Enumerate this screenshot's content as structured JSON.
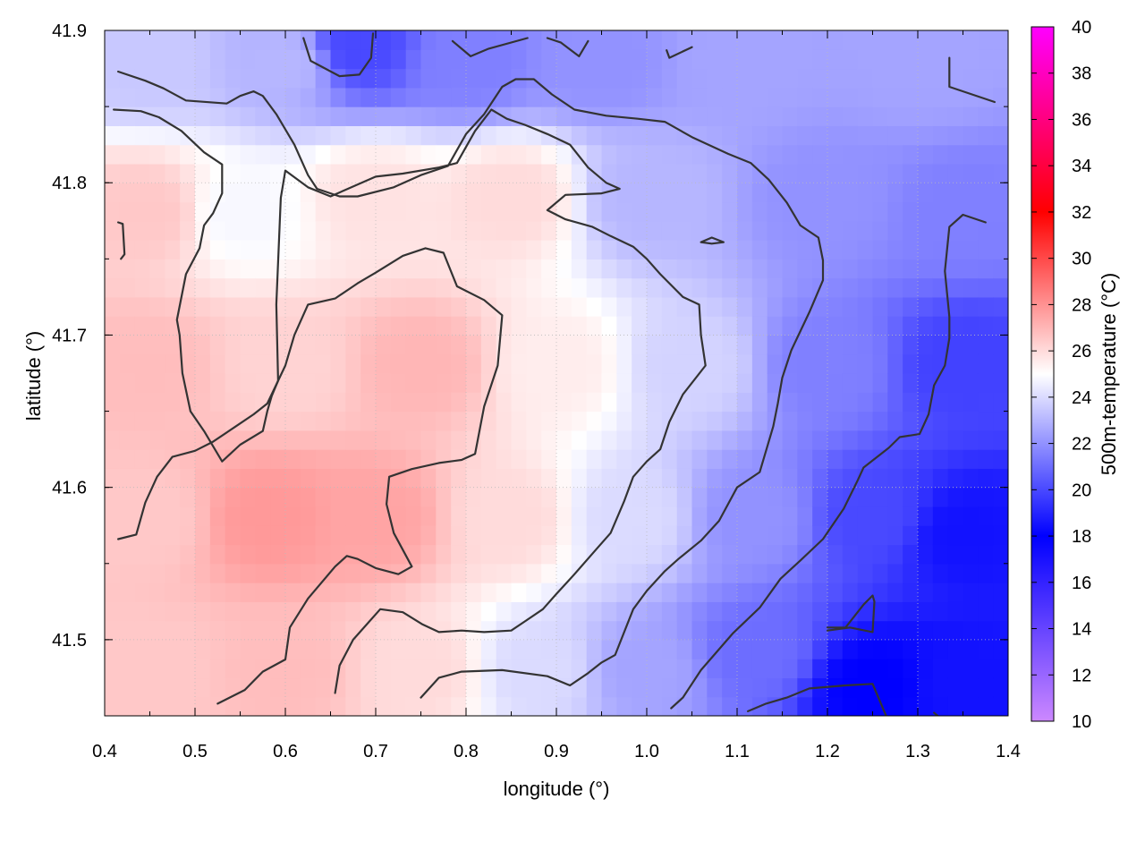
{
  "chart_data": {
    "type": "heatmap",
    "title": "",
    "xlabel": "longitude (°)",
    "ylabel": "latitude (°)",
    "colorbar_label": "500m-temperature (°C)",
    "xlim": [
      0.4,
      1.4
    ],
    "ylim": [
      41.45,
      41.9
    ],
    "x_ticks": [
      0.4,
      0.5,
      0.6,
      0.7,
      0.8,
      0.9,
      1.0,
      1.1,
      1.2,
      1.3,
      1.4
    ],
    "x_tick_labels": [
      "0.4",
      "0.5",
      "0.6",
      "0.7",
      "0.8",
      "0.9",
      "1.0",
      "1.1",
      "1.2",
      "1.3",
      "1.4"
    ],
    "y_ticks": [
      41.5,
      41.6,
      41.7,
      41.8,
      41.9
    ],
    "y_tick_labels": [
      "41.5",
      "41.6",
      "41.7",
      "41.8",
      "41.9"
    ],
    "colorbar_range": [
      10,
      40
    ],
    "colorbar_ticks": [
      10,
      12,
      14,
      16,
      18,
      20,
      22,
      24,
      26,
      28,
      30,
      32,
      34,
      36,
      38,
      40
    ],
    "colorbar_tick_labels": [
      "10",
      "12",
      "14",
      "16",
      "18",
      "20",
      "22",
      "24",
      "26",
      "28",
      "30",
      "32",
      "34",
      "36",
      "38",
      "40"
    ],
    "colormap": [
      {
        "value": 10,
        "color": "#cc88ff"
      },
      {
        "value": 18,
        "color": "#0000ff"
      },
      {
        "value": 25,
        "color": "#ffffff"
      },
      {
        "value": 32,
        "color": "#ff0000"
      },
      {
        "value": 40,
        "color": "#ff00ff"
      }
    ],
    "grid": true,
    "contour_color": "#333333",
    "temperature_samples": [
      {
        "lon": 0.45,
        "lat": 41.88,
        "t": 23.5
      },
      {
        "lon": 0.6,
        "lat": 41.88,
        "t": 23.0
      },
      {
        "lon": 0.68,
        "lat": 41.89,
        "t": 20.0
      },
      {
        "lon": 0.8,
        "lat": 41.88,
        "t": 21.5
      },
      {
        "lon": 0.95,
        "lat": 41.88,
        "t": 22.0
      },
      {
        "lon": 1.1,
        "lat": 41.88,
        "t": 22.5
      },
      {
        "lon": 1.3,
        "lat": 41.88,
        "t": 22.5
      },
      {
        "lon": 0.45,
        "lat": 41.78,
        "t": 26.5
      },
      {
        "lon": 0.55,
        "lat": 41.78,
        "t": 24.8
      },
      {
        "lon": 0.7,
        "lat": 41.79,
        "t": 25.8
      },
      {
        "lon": 0.85,
        "lat": 41.79,
        "t": 26.0
      },
      {
        "lon": 1.0,
        "lat": 41.79,
        "t": 23.0
      },
      {
        "lon": 1.2,
        "lat": 41.79,
        "t": 22.0
      },
      {
        "lon": 1.35,
        "lat": 41.78,
        "t": 21.5
      },
      {
        "lon": 0.45,
        "lat": 41.68,
        "t": 26.8
      },
      {
        "lon": 0.6,
        "lat": 41.68,
        "t": 26.2
      },
      {
        "lon": 0.75,
        "lat": 41.68,
        "t": 27.0
      },
      {
        "lon": 0.9,
        "lat": 41.68,
        "t": 25.5
      },
      {
        "lon": 1.05,
        "lat": 41.68,
        "t": 23.8
      },
      {
        "lon": 1.2,
        "lat": 41.68,
        "t": 21.5
      },
      {
        "lon": 1.35,
        "lat": 41.68,
        "t": 19.8
      },
      {
        "lon": 0.45,
        "lat": 41.58,
        "t": 26.5
      },
      {
        "lon": 0.58,
        "lat": 41.58,
        "t": 27.8
      },
      {
        "lon": 0.7,
        "lat": 41.58,
        "t": 27.5
      },
      {
        "lon": 0.85,
        "lat": 41.58,
        "t": 26.0
      },
      {
        "lon": 0.98,
        "lat": 41.58,
        "t": 24.0
      },
      {
        "lon": 1.12,
        "lat": 41.58,
        "t": 22.0
      },
      {
        "lon": 1.25,
        "lat": 41.58,
        "t": 20.0
      },
      {
        "lon": 1.35,
        "lat": 41.57,
        "t": 18.5
      },
      {
        "lon": 0.45,
        "lat": 41.48,
        "t": 26.5
      },
      {
        "lon": 0.6,
        "lat": 41.48,
        "t": 26.8
      },
      {
        "lon": 0.75,
        "lat": 41.48,
        "t": 26.0
      },
      {
        "lon": 0.88,
        "lat": 41.48,
        "t": 24.0
      },
      {
        "lon": 1.0,
        "lat": 41.48,
        "t": 22.5
      },
      {
        "lon": 1.12,
        "lat": 41.49,
        "t": 21.0
      },
      {
        "lon": 1.25,
        "lat": 41.47,
        "t": 18.0
      },
      {
        "lon": 1.35,
        "lat": 41.47,
        "t": 18.5
      }
    ],
    "contours": [
      [
        [
          0.415,
          41.873
        ],
        [
          0.445,
          41.867
        ],
        [
          0.465,
          41.862
        ],
        [
          0.49,
          41.854
        ],
        [
          0.535,
          41.852
        ],
        [
          0.55,
          41.857
        ],
        [
          0.565,
          41.86
        ],
        [
          0.575,
          41.857
        ],
        [
          0.59,
          41.845
        ],
        [
          0.61,
          41.825
        ],
        [
          0.625,
          41.805
        ],
        [
          0.635,
          41.796
        ],
        [
          0.66,
          41.791
        ],
        [
          0.68,
          41.791
        ],
        [
          0.72,
          41.797
        ],
        [
          0.75,
          41.805
        ],
        [
          0.78,
          41.811
        ],
        [
          0.8,
          41.832
        ],
        [
          0.82,
          41.845
        ],
        [
          0.84,
          41.863
        ],
        [
          0.855,
          41.868
        ],
        [
          0.875,
          41.868
        ],
        [
          0.895,
          41.858
        ],
        [
          0.92,
          41.848
        ],
        [
          0.955,
          41.844
        ],
        [
          0.99,
          41.842
        ],
        [
          1.02,
          41.84
        ],
        [
          1.05,
          41.83
        ],
        [
          1.09,
          41.819
        ],
        [
          1.115,
          41.813
        ],
        [
          1.135,
          41.802
        ],
        [
          1.155,
          41.787
        ],
        [
          1.17,
          41.772
        ],
        [
          1.19,
          41.764
        ],
        [
          1.195,
          41.749
        ],
        [
          1.195,
          41.736
        ],
        [
          1.18,
          41.715
        ],
        [
          1.16,
          41.69
        ],
        [
          1.15,
          41.672
        ],
        [
          1.145,
          41.655
        ],
        [
          1.14,
          41.64
        ],
        [
          1.125,
          41.61
        ],
        [
          1.1,
          41.6
        ],
        [
          1.08,
          41.578
        ],
        [
          1.06,
          41.565
        ],
        [
          1.035,
          41.553
        ],
        [
          1.02,
          41.545
        ],
        [
          1.0,
          41.532
        ],
        [
          0.985,
          41.52
        ],
        [
          0.965,
          41.49
        ],
        [
          0.95,
          41.485
        ],
        [
          0.935,
          41.478
        ],
        [
          0.915,
          41.47
        ],
        [
          0.89,
          41.476
        ],
        [
          0.84,
          41.48
        ],
        [
          0.795,
          41.479
        ],
        [
          0.77,
          41.475
        ],
        [
          0.75,
          41.462
        ]
      ],
      [
        [
          0.41,
          41.848
        ],
        [
          0.44,
          41.847
        ],
        [
          0.46,
          41.843
        ],
        [
          0.485,
          41.834
        ],
        [
          0.51,
          41.82
        ],
        [
          0.53,
          41.812
        ],
        [
          0.53,
          41.793
        ],
        [
          0.52,
          41.78
        ],
        [
          0.51,
          41.772
        ],
        [
          0.505,
          41.757
        ],
        [
          0.49,
          41.74
        ],
        [
          0.48,
          41.71
        ],
        [
          0.483,
          41.7
        ],
        [
          0.486,
          41.675
        ],
        [
          0.495,
          41.65
        ],
        [
          0.51,
          41.637
        ],
        [
          0.53,
          41.617
        ],
        [
          0.55,
          41.628
        ],
        [
          0.575,
          41.637
        ],
        [
          0.58,
          41.65
        ],
        [
          0.585,
          41.66
        ],
        [
          0.592,
          41.67
        ],
        [
          0.59,
          41.72
        ],
        [
          0.595,
          41.79
        ],
        [
          0.6,
          41.808
        ],
        [
          0.625,
          41.797
        ],
        [
          0.65,
          41.791
        ],
        [
          0.7,
          41.804
        ],
        [
          0.73,
          41.806
        ],
        [
          0.77,
          41.81
        ],
        [
          0.79,
          41.813
        ],
        [
          0.81,
          41.834
        ],
        [
          0.828,
          41.848
        ],
        [
          0.845,
          41.842
        ],
        [
          0.865,
          41.838
        ],
        [
          0.89,
          41.832
        ],
        [
          0.915,
          41.825
        ],
        [
          0.935,
          41.81
        ],
        [
          0.955,
          41.8
        ],
        [
          0.97,
          41.796
        ],
        [
          0.95,
          41.793
        ],
        [
          0.91,
          41.792
        ],
        [
          0.89,
          41.782
        ],
        [
          0.91,
          41.776
        ],
        [
          0.94,
          41.771
        ],
        [
          0.96,
          41.765
        ],
        [
          0.985,
          41.758
        ],
        [
          1.0,
          41.75
        ],
        [
          1.015,
          41.74
        ],
        [
          1.04,
          41.725
        ],
        [
          1.058,
          41.72
        ],
        [
          1.06,
          41.7
        ],
        [
          1.065,
          41.68
        ],
        [
          1.04,
          41.661
        ],
        [
          1.025,
          41.643
        ],
        [
          1.015,
          41.625
        ],
        [
          1.0,
          41.617
        ],
        [
          0.985,
          41.607
        ],
        [
          0.975,
          41.591
        ],
        [
          0.96,
          41.57
        ],
        [
          0.945,
          41.56
        ],
        [
          0.92,
          41.543
        ],
        [
          0.9,
          41.53
        ],
        [
          0.885,
          41.52
        ],
        [
          0.865,
          41.512
        ],
        [
          0.85,
          41.506
        ],
        [
          0.82,
          41.505
        ],
        [
          0.795,
          41.506
        ],
        [
          0.77,
          41.505
        ],
        [
          0.752,
          41.51
        ],
        [
          0.73,
          41.518
        ],
        [
          0.705,
          41.52
        ],
        [
          0.69,
          41.51
        ],
        [
          0.675,
          41.5
        ],
        [
          0.66,
          41.483
        ],
        [
          0.655,
          41.465
        ]
      ],
      [
        [
          0.415,
          41.566
        ],
        [
          0.435,
          41.569
        ],
        [
          0.445,
          41.59
        ],
        [
          0.458,
          41.607
        ],
        [
          0.475,
          41.62
        ],
        [
          0.5,
          41.624
        ],
        [
          0.52,
          41.63
        ],
        [
          0.545,
          41.64
        ],
        [
          0.565,
          41.648
        ],
        [
          0.58,
          41.655
        ],
        [
          0.6,
          41.68
        ],
        [
          0.61,
          41.7
        ],
        [
          0.625,
          41.72
        ],
        [
          0.655,
          41.724
        ],
        [
          0.68,
          41.734
        ],
        [
          0.7,
          41.741
        ],
        [
          0.73,
          41.752
        ],
        [
          0.755,
          41.757
        ],
        [
          0.775,
          41.754
        ],
        [
          0.79,
          41.732
        ],
        [
          0.82,
          41.723
        ],
        [
          0.84,
          41.713
        ],
        [
          0.835,
          41.68
        ],
        [
          0.82,
          41.653
        ],
        [
          0.81,
          41.622
        ],
        [
          0.795,
          41.618
        ],
        [
          0.77,
          41.616
        ],
        [
          0.74,
          41.612
        ],
        [
          0.715,
          41.607
        ],
        [
          0.712,
          41.589
        ],
        [
          0.72,
          41.57
        ],
        [
          0.74,
          41.548
        ],
        [
          0.725,
          41.543
        ],
        [
          0.7,
          41.547
        ],
        [
          0.68,
          41.553
        ],
        [
          0.668,
          41.555
        ],
        [
          0.655,
          41.548
        ],
        [
          0.625,
          41.527
        ],
        [
          0.605,
          41.508
        ],
        [
          0.6,
          41.487
        ],
        [
          0.575,
          41.479
        ],
        [
          0.555,
          41.467
        ],
        [
          0.525,
          41.458
        ]
      ],
      [
        [
          0.62,
          41.895
        ],
        [
          0.628,
          41.88
        ],
        [
          0.66,
          41.87
        ],
        [
          0.682,
          41.871
        ],
        [
          0.695,
          41.882
        ],
        [
          0.697,
          41.898
        ]
      ],
      [
        [
          0.785,
          41.893
        ],
        [
          0.805,
          41.883
        ],
        [
          0.825,
          41.888
        ],
        [
          0.868,
          41.895
        ]
      ],
      [
        [
          0.89,
          41.895
        ],
        [
          0.905,
          41.892
        ],
        [
          0.925,
          41.883
        ],
        [
          0.935,
          41.893
        ]
      ],
      [
        [
          1.022,
          41.887
        ],
        [
          1.025,
          41.882
        ],
        [
          1.05,
          41.889
        ]
      ],
      [
        [
          1.335,
          41.882
        ],
        [
          1.335,
          41.863
        ],
        [
          1.385,
          41.853
        ]
      ],
      [
        [
          0.415,
          41.774
        ],
        [
          0.42,
          41.773
        ],
        [
          0.422,
          41.753
        ],
        [
          0.418,
          41.75
        ]
      ],
      [
        [
          1.06,
          41.761
        ],
        [
          1.072,
          41.764
        ],
        [
          1.085,
          41.761
        ],
        [
          1.072,
          41.76
        ],
        [
          1.06,
          41.761
        ]
      ],
      [
        [
          1.375,
          41.774
        ],
        [
          1.35,
          41.779
        ],
        [
          1.335,
          41.771
        ],
        [
          1.33,
          41.742
        ],
        [
          1.335,
          41.712
        ],
        [
          1.335,
          41.698
        ],
        [
          1.33,
          41.68
        ],
        [
          1.318,
          41.667
        ],
        [
          1.312,
          41.648
        ],
        [
          1.302,
          41.635
        ],
        [
          1.28,
          41.633
        ],
        [
          1.268,
          41.626
        ],
        [
          1.24,
          41.613
        ],
        [
          1.233,
          41.604
        ],
        [
          1.218,
          41.586
        ],
        [
          1.195,
          41.566
        ],
        [
          1.17,
          41.552
        ],
        [
          1.148,
          41.54
        ],
        [
          1.125,
          41.521
        ],
        [
          1.095,
          41.504
        ],
        [
          1.06,
          41.48
        ],
        [
          1.04,
          41.462
        ],
        [
          1.027,
          41.455
        ]
      ],
      [
        [
          1.2,
          41.506
        ],
        [
          1.225,
          41.508
        ],
        [
          1.25,
          41.505
        ],
        [
          1.252,
          41.525
        ],
        [
          1.25,
          41.529
        ],
        [
          1.24,
          41.523
        ],
        [
          1.22,
          41.508
        ],
        [
          1.2,
          41.508
        ]
      ],
      [
        [
          1.112,
          41.453
        ],
        [
          1.132,
          41.458
        ],
        [
          1.155,
          41.462
        ],
        [
          1.18,
          41.468
        ],
        [
          1.22,
          41.47
        ],
        [
          1.25,
          41.471
        ],
        [
          1.265,
          41.45
        ]
      ],
      [
        [
          1.318,
          41.452
        ],
        [
          1.322,
          41.45
        ]
      ]
    ]
  }
}
